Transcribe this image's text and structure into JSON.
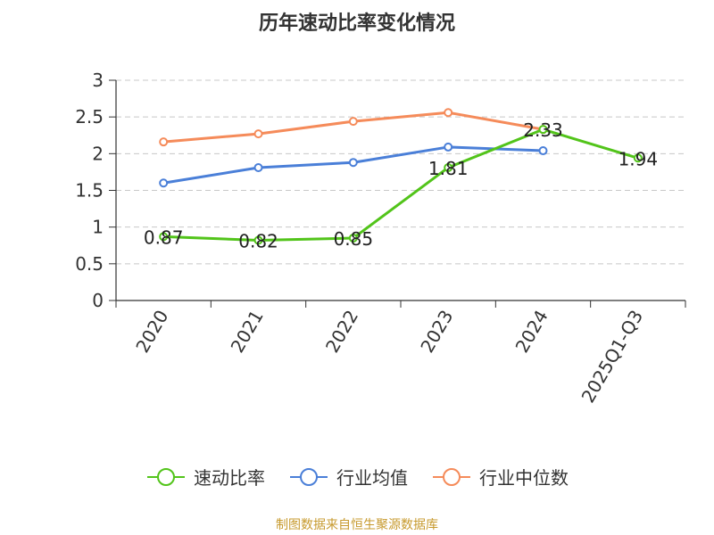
{
  "chart_data": {
    "type": "line",
    "title": "历年速动比率变化情况",
    "categories": [
      "2020",
      "2021",
      "2022",
      "2023",
      "2024",
      "2025Q1-Q3"
    ],
    "ylim": [
      0,
      3
    ],
    "yticks": [
      "0",
      "0.5",
      "1",
      "1.5",
      "2",
      "2.5",
      "3"
    ],
    "grid": true,
    "legend_position": "bottom",
    "series": [
      {
        "name": "速动比率",
        "color": "#52c41a",
        "values": [
          0.87,
          0.82,
          0.85,
          1.81,
          2.33,
          1.94
        ],
        "labels": [
          "0.87",
          "0.82",
          "0.85",
          "1.81",
          "2.33",
          "1.94"
        ]
      },
      {
        "name": "行业均值",
        "color": "#4a7fd8",
        "values": [
          1.6,
          1.81,
          1.88,
          2.09,
          2.04,
          null
        ]
      },
      {
        "name": "行业中位数",
        "color": "#f58b5a",
        "values": [
          2.16,
          2.27,
          2.44,
          2.56,
          2.33,
          null
        ]
      }
    ]
  },
  "source": "制图数据来自恒生聚源数据库"
}
